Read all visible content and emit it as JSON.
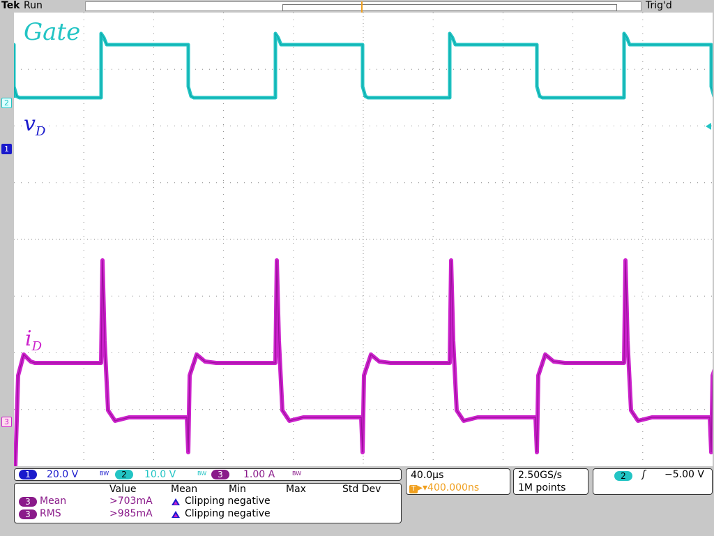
{
  "header": {
    "brand": "Tek",
    "run_state": "Run",
    "trigger_status": "Trig'd"
  },
  "trigger_marker": "T",
  "waveform_labels": {
    "gate": "Gate",
    "vd": {
      "main": "v",
      "sub": "D"
    },
    "id": {
      "main": "i",
      "sub": "D"
    }
  },
  "channel_markers": {
    "ch1": "1",
    "ch2": "2",
    "ch3": "3"
  },
  "colors": {
    "ch1": "#1a1acc",
    "ch2": "#22c4c4",
    "ch3": "#cc22cc",
    "trigger": "#f0a020",
    "grid": "#888888"
  },
  "scales": {
    "ch1": {
      "num": "1",
      "scale": "20.0 V",
      "bw": "BW"
    },
    "ch2": {
      "num": "2",
      "scale": "10.0 V",
      "bw": "BW"
    },
    "ch3": {
      "num": "3",
      "scale": "1.00 A",
      "bw": "BW"
    }
  },
  "timebase": {
    "time_per_div": "40.0µs",
    "trigger_marker": "T",
    "delay": "▸▾400.000ns"
  },
  "acquisition": {
    "sample_rate": "2.50GS/s",
    "record_length": "1M points"
  },
  "trigger": {
    "source": "2",
    "slope_symbol": "ʃ",
    "level": "−5.00 V"
  },
  "measurements": {
    "headers": [
      "Value",
      "Mean",
      "Min",
      "Max",
      "Std Dev"
    ],
    "rows": [
      {
        "source": "3",
        "name": "Mean",
        "value": ">703mA",
        "warning": "Clipping negative"
      },
      {
        "source": "3",
        "name": "RMS",
        "value": ">985mA",
        "warning": "Clipping negative"
      }
    ]
  }
}
